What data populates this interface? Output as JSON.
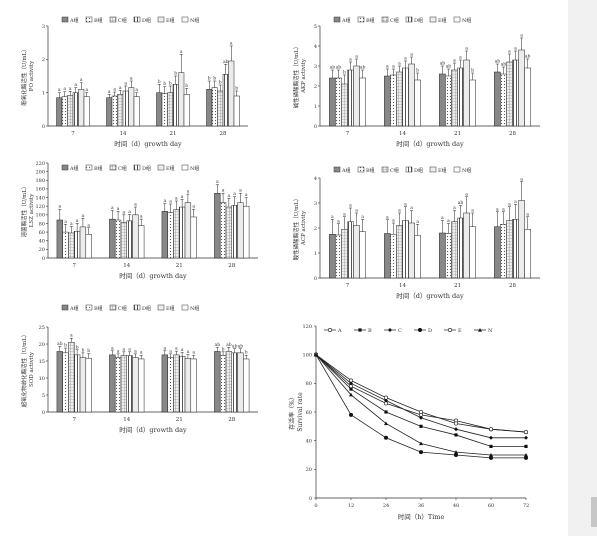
{
  "chart_data": [
    {
      "id": "po",
      "type": "bar",
      "ylabel": "酚氧化酶活性（U/mL）",
      "ylabel2": "PO activity",
      "xlabel": "时间（d）growth day",
      "ylim": [
        0,
        3
      ],
      "yticks": [
        "0",
        "1",
        "2",
        "3"
      ],
      "categories": [
        "7",
        "14",
        "21",
        "28"
      ],
      "series": [
        {
          "name": "A组",
          "values": [
            0.85,
            0.85,
            1.0,
            1.1
          ],
          "errors": [
            0.15,
            0.1,
            0.25,
            0.25
          ],
          "letters": [
            "a",
            "a",
            "b",
            "b"
          ]
        },
        {
          "name": "B组",
          "values": [
            0.88,
            0.9,
            0.98,
            1.15
          ],
          "errors": [
            0.15,
            0.12,
            0.2,
            0.2
          ],
          "letters": [
            "a",
            "a",
            "b",
            "b"
          ]
        },
        {
          "name": "C组",
          "values": [
            0.92,
            0.95,
            1.0,
            1.05
          ],
          "errors": [
            0.12,
            0.12,
            0.2,
            0.18
          ],
          "letters": [
            "a",
            "a",
            "b",
            "b"
          ]
        },
        {
          "name": "D组",
          "values": [
            1.0,
            1.05,
            1.25,
            1.55
          ],
          "errors": [
            0.15,
            0.15,
            0.25,
            0.3
          ],
          "letters": [
            "a",
            "a",
            "b",
            "ab"
          ]
        },
        {
          "name": "E组",
          "values": [
            1.1,
            1.15,
            1.6,
            1.95
          ],
          "errors": [
            0.2,
            0.2,
            0.55,
            0.45
          ],
          "letters": [
            "a",
            "a",
            "a",
            "a"
          ]
        },
        {
          "name": "N组",
          "values": [
            0.88,
            0.88,
            0.95,
            0.9
          ],
          "errors": [
            0.12,
            0.12,
            0.18,
            0.15
          ],
          "letters": [
            "a",
            "a",
            "b",
            "b"
          ]
        }
      ]
    },
    {
      "id": "akp",
      "type": "bar",
      "ylabel": "碱性磷酸酶活性（U/mL）",
      "ylabel2": "AKP activity",
      "xlabel": "时间（d）growth day",
      "ylim": [
        0,
        5
      ],
      "yticks": [
        "0",
        "1",
        "2",
        "3",
        "4",
        "5"
      ],
      "categories": [
        "7",
        "14",
        "21",
        "28"
      ],
      "series": [
        {
          "name": "A组",
          "values": [
            2.4,
            2.5,
            2.6,
            2.7
          ],
          "errors": [
            0.4,
            0.35,
            0.4,
            0.4
          ],
          "letters": [
            "ab",
            "a",
            "ab",
            "ab"
          ]
        },
        {
          "name": "B组",
          "values": [
            2.4,
            2.55,
            2.5,
            2.6
          ],
          "errors": [
            0.4,
            0.3,
            0.35,
            0.35
          ],
          "letters": [
            "ab",
            "a",
            "ab",
            "ab"
          ]
        },
        {
          "name": "C组",
          "values": [
            2.1,
            2.7,
            2.8,
            3.2
          ],
          "errors": [
            0.45,
            0.3,
            0.35,
            0.4
          ],
          "letters": [
            "b",
            "a",
            "a",
            "a"
          ]
        },
        {
          "name": "D组",
          "values": [
            2.8,
            2.9,
            2.9,
            3.3
          ],
          "errors": [
            0.4,
            0.35,
            0.4,
            0.45
          ],
          "letters": [
            "a",
            "a",
            "a",
            "a"
          ]
        },
        {
          "name": "E组",
          "values": [
            3.0,
            3.1,
            3.3,
            3.8
          ],
          "errors": [
            0.35,
            0.35,
            0.45,
            0.6
          ],
          "letters": [
            "a",
            "a",
            "a",
            "a"
          ]
        },
        {
          "name": "N组",
          "values": [
            2.4,
            2.3,
            2.3,
            2.9
          ],
          "errors": [
            0.4,
            0.35,
            0.35,
            0.45
          ],
          "letters": [
            "ab",
            "b",
            "b",
            "ab"
          ]
        }
      ]
    },
    {
      "id": "lsz",
      "type": "bar",
      "ylabel": "溶菌酶活性（U/mL）",
      "ylabel2": "LSZ activity",
      "xlabel": "时间（d）growth day",
      "ylim": [
        0,
        220
      ],
      "yticks": [
        "0",
        "20",
        "40",
        "60",
        "80",
        "100",
        "120",
        "140",
        "160",
        "180",
        "200",
        "220"
      ],
      "categories": [
        "7",
        "14",
        "21",
        "28"
      ],
      "series": [
        {
          "name": "A组",
          "values": [
            88,
            90,
            108,
            150
          ],
          "errors": [
            25,
            20,
            18,
            20
          ],
          "letters": [
            "a",
            "a",
            "a",
            "a"
          ]
        },
        {
          "name": "B组",
          "values": [
            60,
            88,
            105,
            128
          ],
          "errors": [
            18,
            20,
            20,
            22
          ],
          "letters": [
            "a",
            "a",
            "a",
            "a"
          ]
        },
        {
          "name": "C组",
          "values": [
            58,
            82,
            112,
            118
          ],
          "errors": [
            15,
            18,
            20,
            20
          ],
          "letters": [
            "a",
            "a",
            "a",
            "a"
          ]
        },
        {
          "name": "D组",
          "values": [
            62,
            86,
            118,
            122
          ],
          "errors": [
            18,
            15,
            18,
            20
          ],
          "letters": [
            "a",
            "a",
            "a",
            "a"
          ]
        },
        {
          "name": "E组",
          "values": [
            72,
            100,
            128,
            128
          ],
          "errors": [
            20,
            18,
            20,
            22
          ],
          "letters": [
            "a",
            "a",
            "a",
            "a"
          ]
        },
        {
          "name": "N组",
          "values": [
            55,
            75,
            95,
            120
          ],
          "errors": [
            15,
            15,
            18,
            20
          ],
          "letters": [
            "a",
            "a",
            "a",
            "a"
          ]
        }
      ]
    },
    {
      "id": "acp",
      "type": "bar",
      "ylabel": "酸性磷酸酶活性（U/mL）",
      "ylabel2": "ACP activity",
      "xlabel": "时间（d）growth day",
      "ylim": [
        0,
        4
      ],
      "yticks": [
        "0",
        "1",
        "2",
        "3",
        "4"
      ],
      "categories": [
        "7",
        "14",
        "21",
        "28"
      ],
      "series": [
        {
          "name": "A组",
          "values": [
            1.75,
            1.78,
            1.8,
            2.05
          ],
          "errors": [
            0.6,
            0.55,
            0.5,
            0.6
          ],
          "letters": [
            "a",
            "a",
            "a",
            "a"
          ]
        },
        {
          "name": "B组",
          "values": [
            1.72,
            1.75,
            1.78,
            2.15
          ],
          "errors": [
            0.45,
            0.45,
            0.4,
            0.5
          ],
          "letters": [
            "a",
            "a",
            "a",
            "a"
          ]
        },
        {
          "name": "C组",
          "values": [
            1.95,
            2.1,
            2.25,
            2.3
          ],
          "errors": [
            0.5,
            0.5,
            0.45,
            0.55
          ],
          "letters": [
            "a",
            "a",
            "a",
            "a"
          ]
        },
        {
          "name": "D组",
          "values": [
            2.25,
            2.3,
            2.4,
            2.35
          ],
          "errors": [
            0.55,
            0.55,
            0.5,
            0.6
          ],
          "letters": [
            "a",
            "a",
            "ab",
            "a"
          ]
        },
        {
          "name": "E组",
          "values": [
            2.1,
            2.2,
            2.6,
            3.1
          ],
          "errors": [
            0.5,
            0.5,
            0.65,
            0.75
          ],
          "letters": [
            "a",
            "a",
            "a",
            "a"
          ]
        },
        {
          "name": "N组",
          "values": [
            1.85,
            1.7,
            2.05,
            1.95
          ],
          "errors": [
            0.5,
            0.45,
            0.55,
            0.5
          ],
          "letters": [
            "a",
            "a",
            "a",
            "a"
          ]
        }
      ]
    },
    {
      "id": "sod",
      "type": "bar",
      "ylabel": "超氧化物歧化酶活性（U/mL）",
      "ylabel2": "SOD activity",
      "xlabel": "时间（d）growth day",
      "ylim": [
        0,
        25
      ],
      "yticks": [
        "0",
        "5",
        "10",
        "15",
        "20",
        "25"
      ],
      "categories": [
        "7",
        "14",
        "21",
        "28"
      ],
      "series": [
        {
          "name": "A组",
          "values": [
            17.8,
            16.8,
            16.8,
            17.8
          ],
          "errors": [
            1.5,
            1.2,
            1.2,
            1.2
          ],
          "letters": [
            "ab",
            "a",
            "a",
            "ab"
          ]
        },
        {
          "name": "B组",
          "values": [
            17.4,
            16.0,
            16.0,
            16.6
          ],
          "errors": [
            1.4,
            1.1,
            1.1,
            1.1
          ],
          "letters": [
            "b",
            "a",
            "a",
            "b"
          ]
        },
        {
          "name": "C组",
          "values": [
            20.5,
            16.6,
            16.8,
            17.8
          ],
          "errors": [
            1.2,
            1.1,
            1.1,
            1.2
          ],
          "letters": [
            "a",
            "a",
            "a",
            "ab"
          ]
        },
        {
          "name": "D组",
          "values": [
            16.8,
            16.6,
            16.4,
            17.4
          ],
          "errors": [
            1.5,
            1.1,
            1.1,
            1.2
          ],
          "letters": [
            "b",
            "a",
            "a",
            "ab"
          ]
        },
        {
          "name": "E组",
          "values": [
            16.0,
            16.0,
            15.8,
            17.4
          ],
          "errors": [
            1.4,
            1.1,
            1.1,
            1.2
          ],
          "letters": [
            "b",
            "a",
            "a",
            "ab"
          ]
        },
        {
          "name": "N组",
          "values": [
            15.8,
            15.6,
            15.6,
            15.6
          ],
          "errors": [
            1.4,
            1.1,
            1.1,
            1.1
          ],
          "letters": [
            "b",
            "a",
            "a",
            "b"
          ]
        }
      ]
    },
    {
      "id": "survival",
      "type": "line",
      "ylabel": "存活率（%）",
      "ylabel2": "Survival rate",
      "xlabel": "时间（h）Time",
      "x": [
        0,
        12,
        24,
        36,
        48,
        60,
        72
      ],
      "xticks": [
        "0",
        "12",
        "24",
        "36",
        "48",
        "60",
        "72"
      ],
      "xlim": [
        0,
        72
      ],
      "ylim": [
        0,
        120
      ],
      "yticks": [
        "0",
        "20",
        "40",
        "60",
        "80",
        "100",
        "120"
      ],
      "series": [
        {
          "name": "A",
          "values": [
            100,
            78,
            66,
            58,
            54,
            48,
            46
          ]
        },
        {
          "name": "B",
          "values": [
            100,
            76,
            60,
            50,
            44,
            36,
            36
          ]
        },
        {
          "name": "C",
          "values": [
            100,
            80,
            68,
            56,
            48,
            42,
            42
          ]
        },
        {
          "name": "D",
          "values": [
            100,
            58,
            42,
            32,
            30,
            28,
            28
          ]
        },
        {
          "name": "E",
          "values": [
            100,
            82,
            70,
            60,
            52,
            48,
            46
          ]
        },
        {
          "name": "N",
          "values": [
            100,
            72,
            52,
            38,
            32,
            30,
            30
          ]
        }
      ]
    }
  ]
}
